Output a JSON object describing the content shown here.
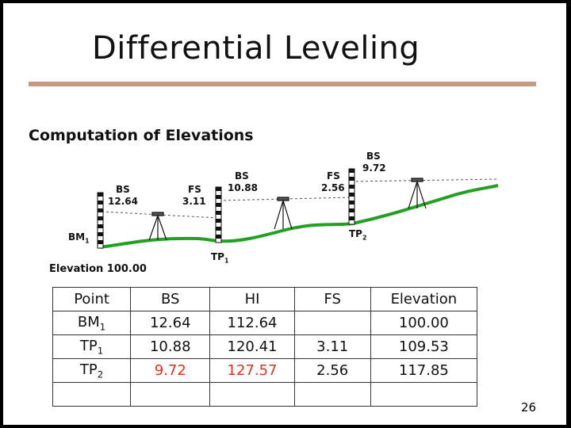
{
  "slide": {
    "title": "Differential Leveling",
    "subtitle": "Computation of Elevations",
    "page_number": "26"
  },
  "diagram": {
    "bs1": {
      "label": "BS",
      "value": "12.64"
    },
    "fs1": {
      "label": "FS",
      "value": "3.11"
    },
    "bs2": {
      "label": "BS",
      "value": "10.88"
    },
    "fs2": {
      "label": "FS",
      "value": "2.56"
    },
    "bs3": {
      "label": "BS",
      "value": "9.72"
    },
    "bm1": {
      "name": "BM",
      "sub": "1"
    },
    "tp1": {
      "name": "TP",
      "sub": "1"
    },
    "tp2": {
      "name": "TP",
      "sub": "2"
    },
    "elevation_label": "Elevation 100.00",
    "colors": {
      "ground": "#22a022",
      "sightline": "#555555",
      "rule": "#c49a82",
      "highlight": "#e0301e"
    }
  },
  "table": {
    "headers": [
      "Point",
      "BS",
      "HI",
      "FS",
      "Elevation"
    ],
    "rows": [
      {
        "point": "BM",
        "sub": "1",
        "bs": "12.64",
        "hi": "112.64",
        "fs": "",
        "elev": "100.00"
      },
      {
        "point": "TP",
        "sub": "1",
        "bs": "10.88",
        "hi": "120.41",
        "fs": "3.11",
        "elev": "109.53"
      },
      {
        "point": "TP",
        "sub": "2",
        "bs": "9.72",
        "hi": "127.57",
        "fs": "2.56",
        "elev": "117.85"
      }
    ]
  }
}
